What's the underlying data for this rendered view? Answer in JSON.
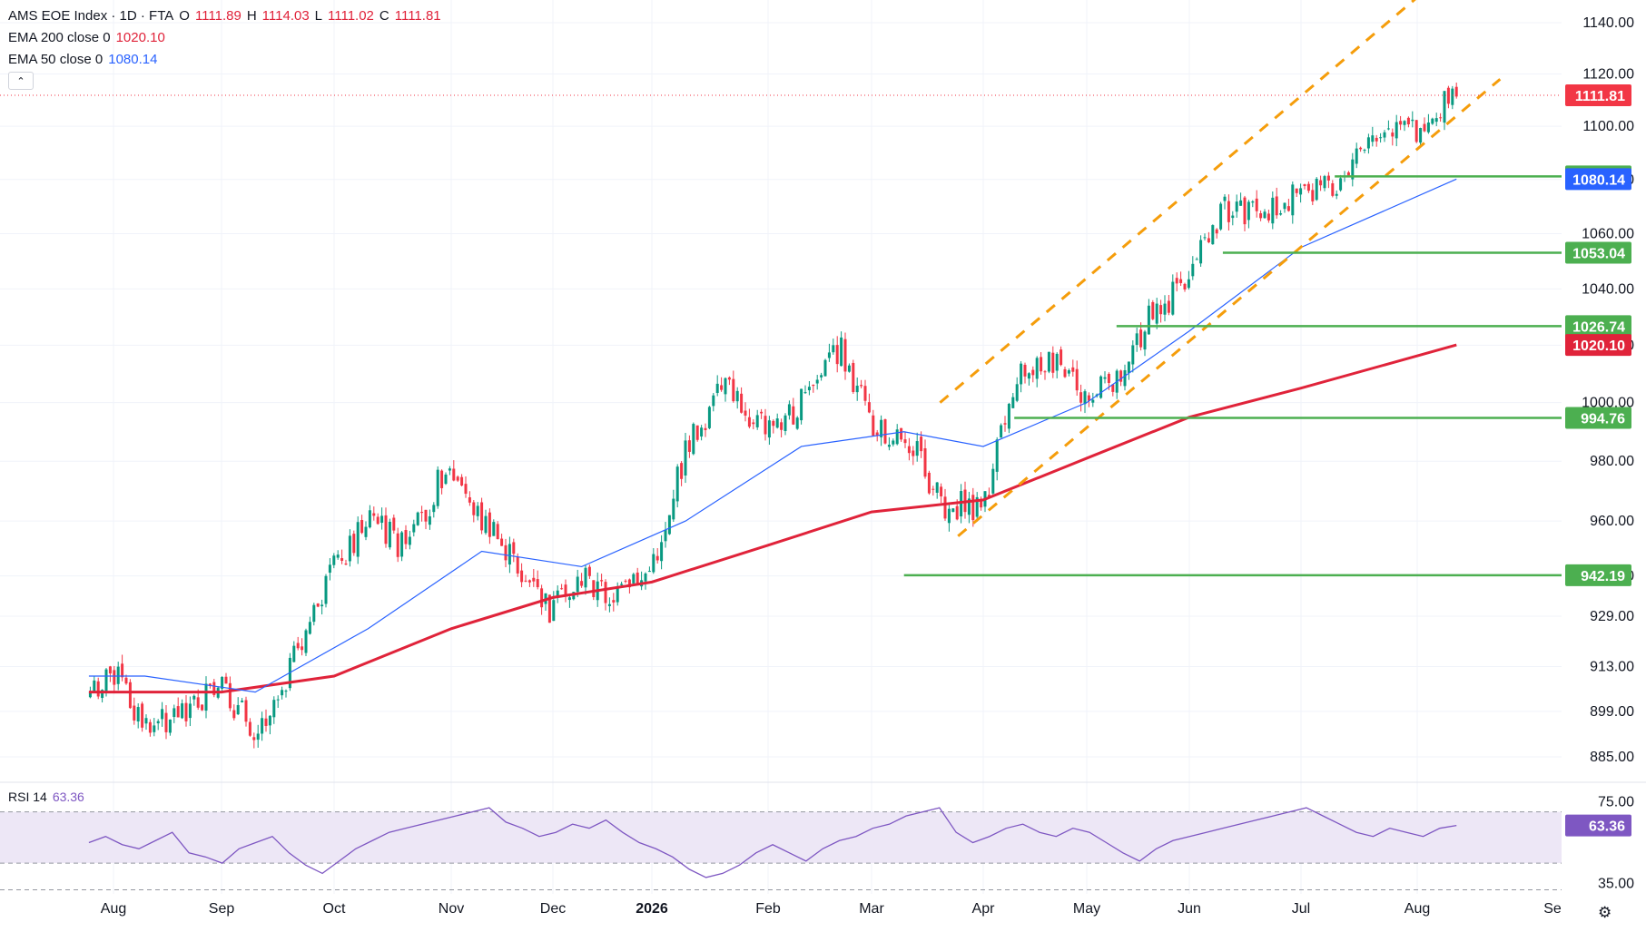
{
  "legend": {
    "title": "AMS EOE Index · 1D · FTA",
    "ohlc": {
      "o_label": "O",
      "o": "1111.89",
      "h_label": "H",
      "h": "1114.03",
      "l_label": "L",
      "l": "1111.02",
      "c_label": "C",
      "c": "1111.81"
    },
    "ema200_label": "EMA 200 close 0",
    "ema200_value": "1020.10",
    "ema50_label": "EMA 50 close 0",
    "ema50_value": "1080.14",
    "collapse_glyph": "⌃"
  },
  "rsi_legend": {
    "label": "RSI 14",
    "value": "63.36"
  },
  "colors": {
    "up": "#089981",
    "down": "#f23645",
    "ema200": "#e0233a",
    "ema50": "#2962ff",
    "support": "#4caf50",
    "channel": "#f59d0b",
    "rsi": "#7e57c2",
    "rsi_band": "#ede7f6"
  },
  "icons": {
    "settings": "gear-icon"
  },
  "chart_data": [
    {
      "type": "candlestick",
      "title": "AMS EOE Index · 1D · FTA",
      "x_ticks": [
        "Aug",
        "Sep",
        "Oct",
        "Nov",
        "Dec",
        "2026",
        "Feb",
        "Mar",
        "Apr",
        "May",
        "Jun",
        "Jul",
        "Aug",
        "Se"
      ],
      "y_ticks": [
        "885.00",
        "899.00",
        "913.00",
        "929.00",
        "942.00",
        "960.00",
        "980.00",
        "1000.00",
        "1020.00",
        "1040.00",
        "1060.00",
        "1080.00",
        "1100.00",
        "1120.00",
        "1140.00"
      ],
      "y_scale": "log",
      "ylim": [
        872,
        1150
      ],
      "price_labels": [
        {
          "value": "1111.81",
          "kind": "last"
        },
        {
          "value": "1081.13",
          "kind": "support"
        },
        {
          "value": "1080.14",
          "kind": "ema50"
        },
        {
          "value": "1053.04",
          "kind": "support"
        },
        {
          "value": "1026.74",
          "kind": "support"
        },
        {
          "value": "1020.10",
          "kind": "ema200"
        },
        {
          "value": "994.76",
          "kind": "support"
        },
        {
          "value": "942.19",
          "kind": "support"
        }
      ],
      "support_levels": [
        {
          "value": 1081.13,
          "from": "Jul"
        },
        {
          "value": 1053.04,
          "from": "Jun"
        },
        {
          "value": 1026.74,
          "from": "May"
        },
        {
          "value": 994.76,
          "from": "Apr"
        },
        {
          "value": 942.19,
          "from": "Mar"
        }
      ],
      "close_path": [
        [
          "Jul 25",
          905
        ],
        [
          "Aug 1",
          912
        ],
        [
          "Aug 10",
          893
        ],
        [
          "Aug 20",
          900
        ],
        [
          "Sep 1",
          905
        ],
        [
          "Sep 10",
          893
        ],
        [
          "Sep 20",
          915
        ],
        [
          "Oct 1",
          945
        ],
        [
          "Oct 10",
          962
        ],
        [
          "Oct 20",
          950
        ],
        [
          "Oct 30",
          978
        ],
        [
          "Nov 10",
          960
        ],
        [
          "Nov 20",
          945
        ],
        [
          "Nov 30",
          930
        ],
        [
          "Dec 10",
          942
        ],
        [
          "Dec 20",
          934
        ],
        [
          "Jan 1",
          945
        ],
        [
          "Jan 10",
          985
        ],
        [
          "Jan 20",
          1005
        ],
        [
          "Feb 1",
          990
        ],
        [
          "Feb 10",
          1000
        ],
        [
          "Feb 20",
          1020
        ],
        [
          "Mar 1",
          990
        ],
        [
          "Mar 10",
          990
        ],
        [
          "Mar 20",
          965
        ],
        [
          "Apr 1",
          965
        ],
        [
          "Apr 10",
          1010
        ],
        [
          "Apr 20",
          1015
        ],
        [
          "May 1",
          1000
        ],
        [
          "May 10",
          1010
        ],
        [
          "May 20",
          1030
        ],
        [
          "Jun 1",
          1045
        ],
        [
          "Jun 10",
          1070
        ],
        [
          "Jun 20",
          1065
        ],
        [
          "Jul 1",
          1075
        ],
        [
          "Jul 10",
          1080
        ],
        [
          "Jul 20",
          1095
        ],
        [
          "Aug 1",
          1100
        ],
        [
          "Aug 10",
          1111.81
        ]
      ],
      "ema200": [
        [
          "Jul 25",
          905
        ],
        [
          "Sep 1",
          905
        ],
        [
          "Oct 1",
          910
        ],
        [
          "Nov 1",
          925
        ],
        [
          "Dec 1",
          935
        ],
        [
          "Jan 1",
          940
        ],
        [
          "Feb 1",
          952
        ],
        [
          "Mar 1",
          963
        ],
        [
          "Apr 1",
          967
        ],
        [
          "May 1",
          981
        ],
        [
          "Jun 1",
          995
        ],
        [
          "Jul 1",
          1005
        ],
        [
          "Aug 10",
          1020.1
        ]
      ],
      "ema50": [
        [
          "Jul 25",
          910
        ],
        [
          "Aug 10",
          910
        ],
        [
          "Sep 10",
          905
        ],
        [
          "Oct 10",
          925
        ],
        [
          "Nov 10",
          950
        ],
        [
          "Dec 10",
          945
        ],
        [
          "Jan 10",
          960
        ],
        [
          "Feb 10",
          985
        ],
        [
          "Mar 10",
          990
        ],
        [
          "Apr 1",
          985
        ],
        [
          "May 1",
          1000
        ],
        [
          "Jun 1",
          1025
        ],
        [
          "Jul 1",
          1055
        ],
        [
          "Aug 10",
          1080.14
        ]
      ]
    },
    {
      "type": "line",
      "title": "RSI 14",
      "y_ticks": [
        "75.00",
        "35.00"
      ],
      "ylim": [
        30,
        80
      ],
      "band": [
        45,
        70
      ],
      "values": [
        55,
        58,
        54,
        52,
        56,
        60,
        50,
        48,
        45,
        52,
        55,
        58,
        50,
        44,
        40,
        46,
        52,
        56,
        60,
        62,
        64,
        66,
        68,
        70,
        72,
        65,
        62,
        58,
        60,
        64,
        62,
        66,
        60,
        55,
        52,
        48,
        42,
        38,
        40,
        44,
        50,
        54,
        50,
        46,
        52,
        56,
        58,
        62,
        64,
        68,
        70,
        72,
        60,
        55,
        58,
        62,
        64,
        60,
        58,
        62,
        60,
        55,
        50,
        46,
        52,
        56,
        58,
        60,
        62,
        64,
        66,
        68,
        70,
        72,
        68,
        64,
        60,
        58,
        62,
        60,
        58,
        62,
        63.36
      ]
    }
  ]
}
